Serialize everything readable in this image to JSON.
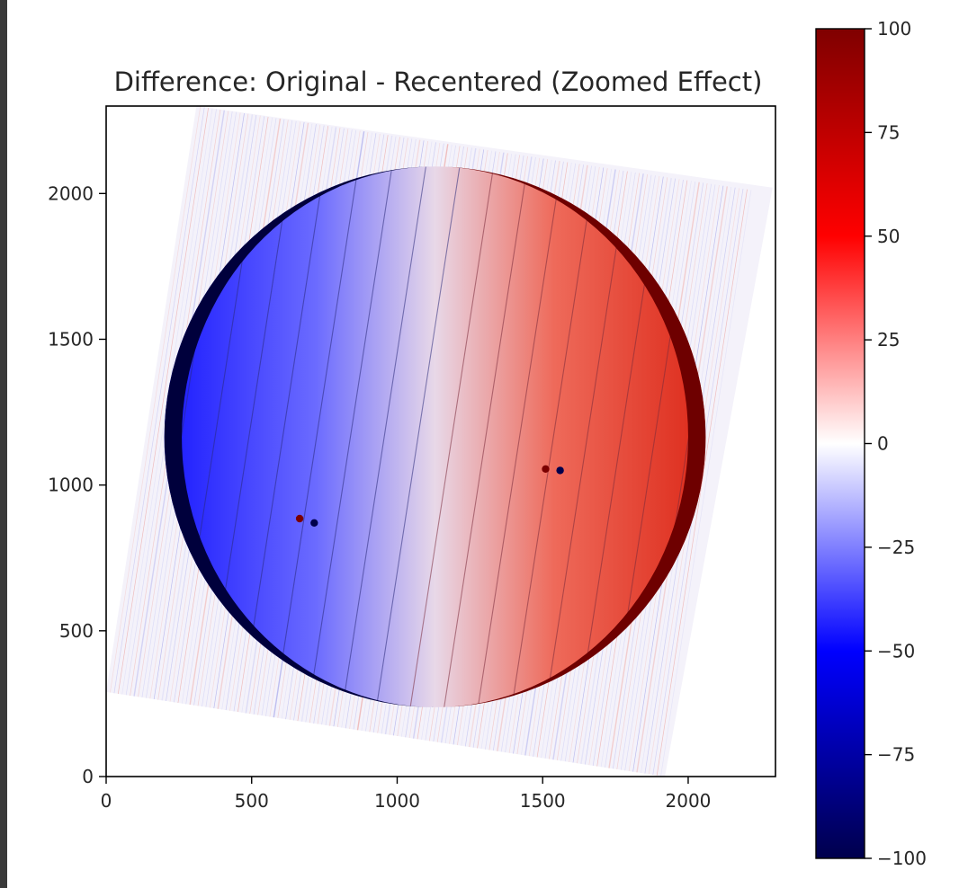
{
  "chart_data": {
    "type": "heatmap",
    "title": "Difference: Original - Recentered (Zoomed Effect)",
    "xlabel": "",
    "ylabel": "",
    "xlim": [
      0,
      2300
    ],
    "ylim": [
      0,
      2300
    ],
    "x_ticks": [
      0,
      500,
      1000,
      1500,
      2000
    ],
    "y_ticks": [
      0,
      500,
      1000,
      1500,
      2000
    ],
    "x_tick_labels": [
      "0",
      "500",
      "1000",
      "1500",
      "2000"
    ],
    "y_tick_labels": [
      "0",
      "500",
      "1000",
      "1500",
      "2000"
    ],
    "colormap": "seismic",
    "colormap_colors": [
      "#00004c",
      "#0000ff",
      "#ffffff",
      "#ff0000",
      "#7f0000"
    ],
    "colorbar": {
      "vmin": -100,
      "vmax": 100,
      "ticks": [
        100,
        75,
        50,
        25,
        0,
        -25,
        -50,
        -75,
        -100
      ],
      "tick_labels": [
        "100",
        "75",
        "50",
        "25",
        "0",
        "−25",
        "−50",
        "−75",
        "−100"
      ]
    },
    "disk": {
      "center": [
        1130,
        1165
      ],
      "radius": 930,
      "left_half_value": -60,
      "right_half_value": 60,
      "limb_value": 100
    },
    "spots": [
      {
        "x": 1510,
        "y": 1055,
        "value": 100
      },
      {
        "x": 1560,
        "y": 1050,
        "value": -100
      },
      {
        "x": 665,
        "y": 885,
        "value": 100
      },
      {
        "x": 715,
        "y": 870,
        "value": -100
      }
    ],
    "frame_corners": [
      [
        0,
        290
      ],
      [
        1920,
        0
      ],
      [
        2290,
        2020
      ],
      [
        310,
        2300
      ]
    ]
  }
}
